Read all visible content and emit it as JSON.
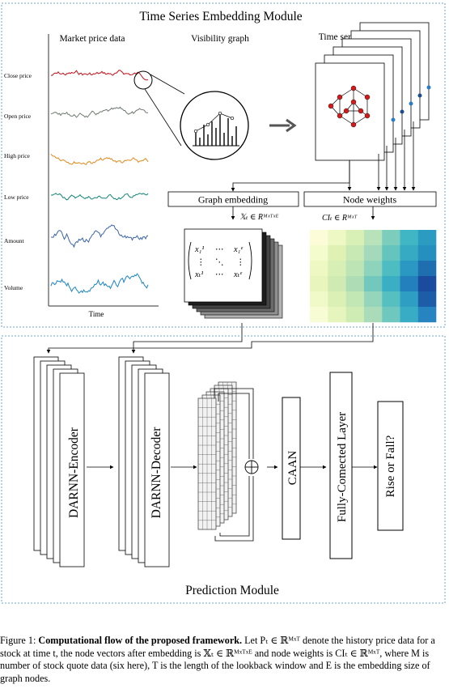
{
  "embedding_module": {
    "title": "Time Series Embedding Module",
    "market_label": "Market price data",
    "visibility_label": "Visibility graph",
    "graphs_label": "Time series graphs",
    "series": [
      {
        "label": "Close price",
        "color": "#c0121a"
      },
      {
        "label": "Open price",
        "color": "#6e7a70"
      },
      {
        "label": "High price",
        "color": "#e08a1e"
      },
      {
        "label": "Low price",
        "color": "#118476"
      },
      {
        "label": "Amount",
        "color": "#3a64a8"
      },
      {
        "label": "Volume",
        "color": "#1c86c4"
      }
    ],
    "time_label": "Time",
    "graph_embedding_label": "Graph embedding",
    "node_weights_label": "Node weights",
    "embedding_formula": "𝕏ₜ ∈ Rᴹˣᵀˣᴱ",
    "weights_formula": "CIₜ ∈ Rᴹˣᵀ"
  },
  "matrix": {
    "top_left": "x₁¹",
    "top_right": "x₁ᵉ",
    "bottom_left": "xₜ¹",
    "bottom_right": "xₜᵉ",
    "h_dots": "⋯",
    "v_dots": "⋮",
    "d_dots": "⋱"
  },
  "heatmap_colors": [
    [
      "#fcfdd8",
      "#edf8c4",
      "#d8efb6",
      "#b8e2ba",
      "#7ccdbb",
      "#40b5c4",
      "#2c9bc2"
    ],
    [
      "#f4fbcc",
      "#dff2b4",
      "#c8e8b4",
      "#a4dabb",
      "#64c4be",
      "#36a9c3",
      "#2590c0"
    ],
    [
      "#edf8c2",
      "#d7efb4",
      "#bde4b4",
      "#8ed3bc",
      "#4ebdc1",
      "#2a98c2",
      "#1f6fb0"
    ],
    [
      "#e8f6bd",
      "#cfeab2",
      "#aedcb4",
      "#72c8bd",
      "#3aaec3",
      "#2480bc",
      "#1a4b9e"
    ],
    [
      "#f0f9c8",
      "#daf0b4",
      "#c2e6b4",
      "#94d5bc",
      "#56c0c0",
      "#2e9fc3",
      "#1d5ca6"
    ],
    [
      "#f8fcd4",
      "#e6f5bd",
      "#d0ecb5",
      "#aadcba",
      "#6ec8be",
      "#38acc4",
      "#2684c0"
    ]
  ],
  "prediction_module": {
    "title": "Prediction Module",
    "encoder_label": "DARNN-Encoder",
    "decoder_label": "DARNN-Decoder",
    "caan_label": "CAAN",
    "fc_label": "Fully-Comected Layer",
    "output_label": "Rise or Fall?",
    "plus_symbol": "+"
  },
  "caption": {
    "prefix": "Figure 1: ",
    "bold": "Computational flow of the proposed framework.",
    "rest": " Let Pₜ ∈ ℝᴹˣᵀ denote the history price data for a stock at time t, the node vectors after embedding is 𝕏ₜ ∈ ℝᴹˣᵀˣᴱ and node weights is CIₜ ∈ ℝᴹˣᵀ, where M is number of stock quote data (six here), T is the length of the lookback window and E is the embedding size of graph nodes."
  }
}
